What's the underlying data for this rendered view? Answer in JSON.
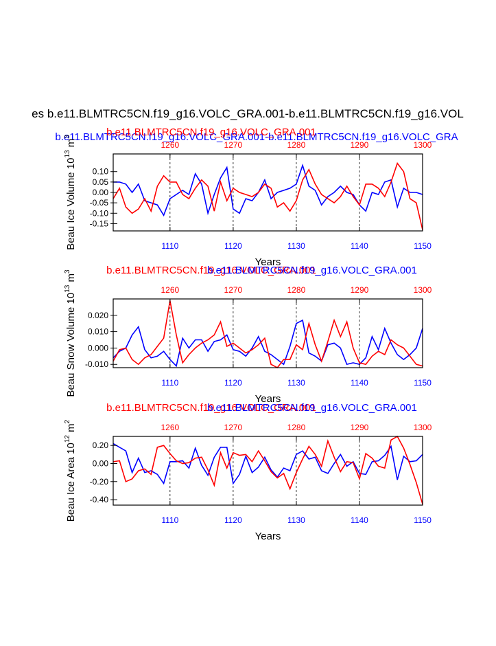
{
  "figure": {
    "title": "es b.e11.BLMTRC5CN.f19_g16.VOLC_GRA.001-b.e11.BLMTRC5CN.f19_g16.VOL",
    "case_red": "b.e11.BLMTRC5CN.f19_g16.VOLC_GRA.001",
    "case_blue": "b.e11.BLMTRC5CN.f19_g16.VOLC_GRA.001",
    "case_blue_top": "b.e11.BLMTRC5CN.f19_g16.VOLC_GRA.001-b.e11.BLMTRC5CN.f19_g16.VOLC_GRA",
    "colors": {
      "red_series": "#ff0000",
      "blue_series": "#0000ff",
      "axes": "#000000"
    }
  },
  "chart_data": [
    {
      "type": "line",
      "name": "beau-ice-volume",
      "ylabel": "Beau Ice Volume",
      "units": {
        "prefix": "10",
        "exp": "13",
        "unit": "m",
        "unit_exp": "3"
      },
      "xlabel": "Years",
      "ylim": [
        -0.185,
        0.185
      ],
      "yticks": [
        0.1,
        0.05,
        0.0,
        -0.05,
        -0.1,
        -0.15
      ],
      "ytick_labels": [
        "0.10",
        "0.05",
        "0.00",
        "-0.05",
        "-0.10",
        "-0.15"
      ],
      "bottom_axis": {
        "range": [
          1101,
          1150
        ],
        "ticks": [
          1110,
          1120,
          1130,
          1140,
          1150
        ],
        "labels": [
          "1110",
          "1120",
          "1130",
          "1140",
          "1150"
        ]
      },
      "top_axis": {
        "range": [
          1251,
          1300
        ],
        "ticks": [
          1260,
          1270,
          1280,
          1290,
          1300
        ],
        "labels": [
          "1260",
          "1270",
          "1280",
          "1290",
          "1300"
        ]
      },
      "series": [
        {
          "name": "blue",
          "axis": "bottom",
          "x": [
            1101,
            1102,
            1103,
            1104,
            1105,
            1106,
            1107,
            1108,
            1109,
            1110,
            1111,
            1112,
            1113,
            1114,
            1115,
            1116,
            1117,
            1118,
            1119,
            1120,
            1121,
            1122,
            1123,
            1124,
            1125,
            1126,
            1127,
            1128,
            1129,
            1130,
            1131,
            1132,
            1133,
            1134,
            1135,
            1136,
            1137,
            1138,
            1139,
            1140,
            1141,
            1142,
            1143,
            1144,
            1145,
            1146,
            1147,
            1148,
            1149,
            1150
          ],
          "values": [
            0.05,
            0.05,
            0.04,
            0.0,
            0.04,
            -0.04,
            -0.05,
            -0.06,
            -0.11,
            -0.03,
            -0.01,
            0.01,
            -0.01,
            0.09,
            0.04,
            -0.1,
            -0.01,
            0.07,
            0.12,
            -0.08,
            -0.1,
            -0.03,
            -0.04,
            0.0,
            0.06,
            -0.03,
            0.0,
            0.01,
            0.02,
            0.04,
            0.13,
            0.03,
            0.01,
            -0.06,
            -0.02,
            0.0,
            0.03,
            0.0,
            -0.01,
            -0.06,
            -0.09,
            0.0,
            -0.01,
            0.05,
            0.06,
            -0.07,
            0.02,
            0.0,
            0.0,
            -0.01
          ]
        },
        {
          "name": "red",
          "axis": "top",
          "x": [
            1251,
            1252,
            1253,
            1254,
            1255,
            1256,
            1257,
            1258,
            1259,
            1260,
            1261,
            1262,
            1263,
            1264,
            1265,
            1266,
            1267,
            1268,
            1269,
            1270,
            1271,
            1272,
            1273,
            1274,
            1275,
            1276,
            1277,
            1278,
            1279,
            1280,
            1281,
            1282,
            1283,
            1284,
            1285,
            1286,
            1287,
            1288,
            1289,
            1290,
            1291,
            1292,
            1293,
            1294,
            1295,
            1296,
            1297,
            1298,
            1299,
            1300
          ],
          "values": [
            -0.03,
            0.02,
            -0.07,
            -0.1,
            -0.08,
            -0.03,
            -0.09,
            0.03,
            0.08,
            0.05,
            0.05,
            -0.01,
            -0.03,
            0.02,
            0.06,
            0.03,
            -0.09,
            0.05,
            -0.04,
            0.02,
            0.0,
            -0.01,
            -0.02,
            0.0,
            0.04,
            0.02,
            -0.07,
            -0.05,
            -0.09,
            -0.04,
            0.06,
            0.11,
            0.04,
            -0.01,
            -0.03,
            -0.05,
            -0.02,
            0.03,
            -0.02,
            -0.06,
            0.04,
            0.04,
            0.02,
            -0.02,
            0.05,
            0.14,
            0.1,
            -0.03,
            -0.05,
            -0.18
          ]
        }
      ]
    },
    {
      "type": "line",
      "name": "beau-snow-volume",
      "ylabel": "Beau Snow Volume",
      "units": {
        "prefix": "10",
        "exp": "13",
        "unit": "m",
        "unit_exp": "3"
      },
      "xlabel": "Years",
      "ylim": [
        -0.012,
        0.03
      ],
      "yticks": [
        0.02,
        0.01,
        0.0,
        -0.01
      ],
      "ytick_labels": [
        "0.020",
        "0.010",
        "0.000",
        "-0.010"
      ],
      "bottom_axis": {
        "range": [
          1101,
          1150
        ],
        "ticks": [
          1110,
          1120,
          1130,
          1140,
          1150
        ],
        "labels": [
          "1110",
          "1120",
          "1130",
          "1140",
          "1150"
        ]
      },
      "top_axis": {
        "range": [
          1251,
          1300
        ],
        "ticks": [
          1260,
          1270,
          1280,
          1290,
          1300
        ],
        "labels": [
          "1260",
          "1270",
          "1280",
          "1290",
          "1300"
        ]
      },
      "series": [
        {
          "name": "blue",
          "axis": "bottom",
          "x": [
            1101,
            1102,
            1103,
            1104,
            1105,
            1106,
            1107,
            1108,
            1109,
            1110,
            1111,
            1112,
            1113,
            1114,
            1115,
            1116,
            1117,
            1118,
            1119,
            1120,
            1121,
            1122,
            1123,
            1124,
            1125,
            1126,
            1127,
            1128,
            1129,
            1130,
            1131,
            1132,
            1133,
            1134,
            1135,
            1136,
            1137,
            1138,
            1139,
            1140,
            1141,
            1142,
            1143,
            1144,
            1145,
            1146,
            1147,
            1148,
            1149,
            1150
          ],
          "values": [
            -0.006,
            -0.002,
            0.0,
            0.008,
            0.013,
            -0.001,
            -0.006,
            -0.005,
            -0.002,
            -0.007,
            -0.011,
            0.006,
            0.0,
            0.005,
            0.005,
            -0.002,
            0.004,
            0.005,
            0.008,
            -0.001,
            -0.002,
            -0.005,
            0.0,
            0.007,
            -0.002,
            -0.004,
            -0.007,
            -0.01,
            0.001,
            0.015,
            0.017,
            -0.003,
            -0.005,
            -0.008,
            0.002,
            0.003,
            0.0,
            -0.01,
            -0.009,
            -0.01,
            -0.006,
            0.007,
            -0.001,
            0.012,
            0.003,
            -0.004,
            -0.007,
            -0.004,
            0.0,
            0.012
          ]
        },
        {
          "name": "red",
          "axis": "top",
          "x": [
            1251,
            1252,
            1253,
            1254,
            1255,
            1256,
            1257,
            1258,
            1259,
            1260,
            1261,
            1262,
            1263,
            1264,
            1265,
            1266,
            1267,
            1268,
            1269,
            1270,
            1271,
            1272,
            1273,
            1274,
            1275,
            1276,
            1277,
            1278,
            1279,
            1280,
            1281,
            1282,
            1283,
            1284,
            1285,
            1286,
            1287,
            1288,
            1289,
            1290,
            1291,
            1292,
            1293,
            1294,
            1295,
            1296,
            1297,
            1298,
            1299,
            1300
          ],
          "values": [
            -0.008,
            -0.001,
            0.0,
            -0.007,
            -0.01,
            -0.006,
            -0.004,
            0.001,
            0.006,
            0.029,
            0.008,
            -0.009,
            -0.004,
            0.0,
            0.003,
            0.005,
            0.008,
            0.016,
            0.001,
            0.003,
            0.0,
            -0.003,
            -0.001,
            0.002,
            0.006,
            -0.01,
            -0.012,
            -0.007,
            -0.007,
            0.002,
            -0.001,
            0.015,
            0.002,
            -0.008,
            0.004,
            0.017,
            0.007,
            0.016,
            0.0,
            -0.009,
            -0.01,
            -0.005,
            -0.002,
            -0.004,
            0.005,
            0.002,
            0.0,
            -0.005,
            -0.01,
            -0.011
          ]
        }
      ]
    },
    {
      "type": "line",
      "name": "beau-ice-area",
      "ylabel": "Beau Ice Area",
      "units": {
        "prefix": "10",
        "exp": "12",
        "unit": "m",
        "unit_exp": "2"
      },
      "xlabel": "Years",
      "ylim": [
        -0.46,
        0.3
      ],
      "yticks": [
        0.2,
        0.0,
        -0.2,
        -0.4
      ],
      "ytick_labels": [
        "0.20",
        "0.00",
        "-0.20",
        "-0.40"
      ],
      "bottom_axis": {
        "range": [
          1101,
          1150
        ],
        "ticks": [
          1110,
          1120,
          1130,
          1140,
          1150
        ],
        "labels": [
          "1110",
          "1120",
          "1130",
          "1140",
          "1150"
        ]
      },
      "top_axis": {
        "range": [
          1251,
          1300
        ],
        "ticks": [
          1260,
          1270,
          1280,
          1290,
          1300
        ],
        "labels": [
          "1260",
          "1270",
          "1280",
          "1290",
          "1300"
        ]
      },
      "series": [
        {
          "name": "blue",
          "axis": "bottom",
          "x": [
            1101,
            1102,
            1103,
            1104,
            1105,
            1106,
            1107,
            1108,
            1109,
            1110,
            1111,
            1112,
            1113,
            1114,
            1115,
            1116,
            1117,
            1118,
            1119,
            1120,
            1121,
            1122,
            1123,
            1124,
            1125,
            1126,
            1127,
            1128,
            1129,
            1130,
            1131,
            1132,
            1133,
            1134,
            1135,
            1136,
            1137,
            1138,
            1139,
            1140,
            1141,
            1142,
            1143,
            1144,
            1145,
            1146,
            1147,
            1148,
            1149,
            1150
          ],
          "values": [
            0.22,
            0.18,
            0.14,
            -0.1,
            0.06,
            -0.1,
            -0.08,
            -0.12,
            -0.22,
            0.02,
            0.02,
            0.03,
            -0.05,
            0.17,
            -0.02,
            -0.13,
            0.07,
            0.18,
            0.18,
            -0.22,
            -0.12,
            0.08,
            -0.1,
            -0.04,
            0.07,
            -0.07,
            -0.15,
            -0.05,
            -0.08,
            0.1,
            0.14,
            0.05,
            0.07,
            -0.08,
            -0.11,
            0.0,
            0.1,
            -0.03,
            0.02,
            -0.11,
            -0.12,
            0.02,
            0.03,
            0.09,
            0.19,
            -0.18,
            0.08,
            0.02,
            0.03,
            0.1
          ]
        },
        {
          "name": "red",
          "axis": "top",
          "x": [
            1251,
            1252,
            1253,
            1254,
            1255,
            1256,
            1257,
            1258,
            1259,
            1260,
            1261,
            1262,
            1263,
            1264,
            1265,
            1266,
            1267,
            1268,
            1269,
            1270,
            1271,
            1272,
            1273,
            1274,
            1275,
            1276,
            1277,
            1278,
            1279,
            1280,
            1281,
            1282,
            1283,
            1284,
            1285,
            1286,
            1287,
            1288,
            1289,
            1290,
            1291,
            1292,
            1293,
            1294,
            1295,
            1296,
            1297,
            1298,
            1299,
            1300
          ],
          "values": [
            0.02,
            0.03,
            -0.2,
            -0.17,
            -0.08,
            -0.06,
            -0.12,
            0.18,
            0.2,
            0.11,
            0.03,
            0.0,
            0.01,
            0.06,
            0.07,
            -0.07,
            -0.24,
            0.12,
            -0.05,
            0.12,
            0.09,
            0.1,
            0.02,
            0.14,
            0.03,
            -0.09,
            -0.16,
            -0.11,
            -0.28,
            -0.1,
            0.05,
            0.19,
            0.1,
            -0.03,
            0.25,
            0.07,
            -0.09,
            0.02,
            0.01,
            -0.17,
            0.11,
            0.06,
            -0.03,
            -0.05,
            0.26,
            0.3,
            0.17,
            -0.01,
            -0.21,
            -0.45
          ]
        }
      ]
    }
  ]
}
